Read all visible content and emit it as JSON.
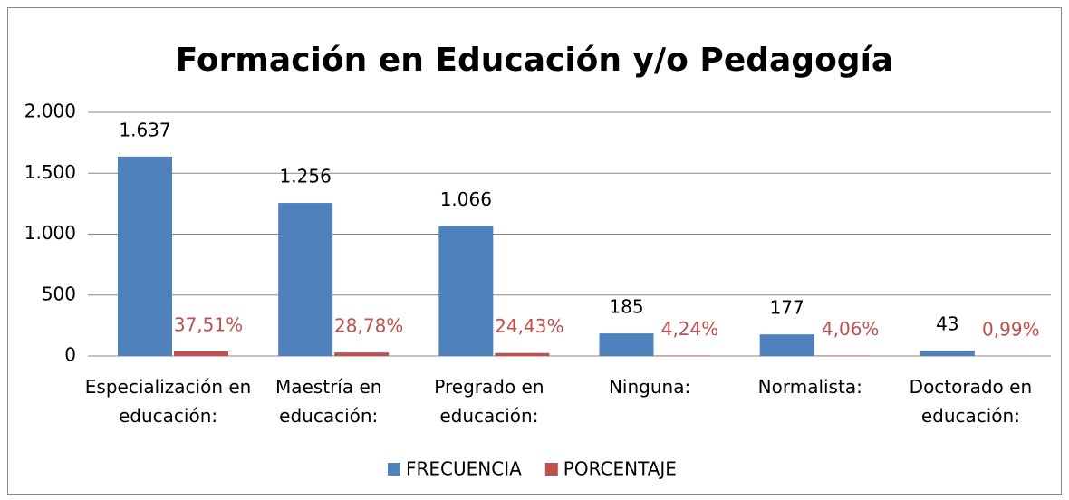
{
  "chart_data": {
    "type": "bar",
    "title": "Formación en Educación y/o Pedagogía",
    "categories": [
      "Especialización en educación:",
      "Maestría en educación:",
      "Pregrado en educación:",
      "Ninguna:",
      "Normalista:",
      "Doctorado en educación:"
    ],
    "series": [
      {
        "name": "FRECUENCIA",
        "color": "#4f81bd",
        "values": [
          1637,
          1256,
          1066,
          185,
          177,
          43
        ],
        "value_labels": [
          "1.637",
          "1.256",
          "1.066",
          "185",
          "177",
          "43"
        ],
        "label_color": "#000000"
      },
      {
        "name": "PORCENTAJE",
        "color": "#c0504d",
        "values": [
          37.51,
          28.78,
          24.43,
          4.24,
          4.06,
          0.99
        ],
        "value_labels": [
          "37,51%",
          "28,78%",
          "24,43%",
          "4,24%",
          "4,06%",
          "0,99%"
        ],
        "label_color": "#c0504d"
      }
    ],
    "ylim": [
      0,
      2000
    ],
    "yticks": [
      0,
      500,
      {
        "value": 1000,
        "label": "1.000"
      },
      {
        "value": 1500,
        "label": "1.500"
      },
      {
        "value": 2000,
        "label": "2.000"
      }
    ],
    "grid": true,
    "legend": "bottom"
  }
}
